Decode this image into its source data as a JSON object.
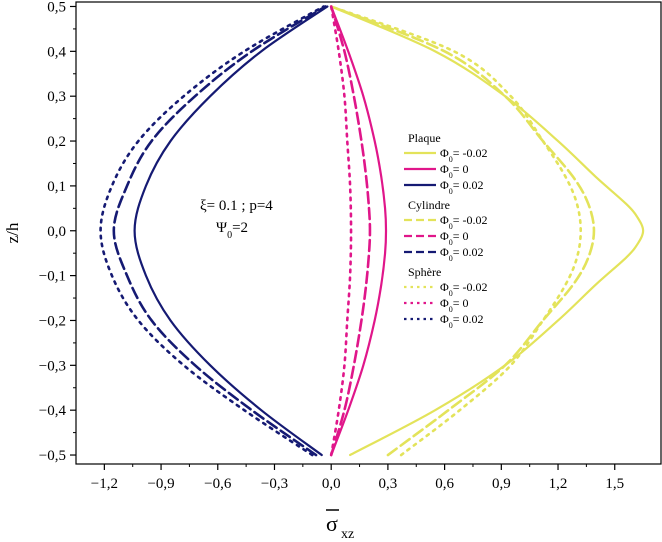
{
  "chart_data": {
    "type": "line",
    "xlabel": "σ̄xz",
    "ylabel": "z/h",
    "xlim": [
      -1.35,
      1.75
    ],
    "ylim": [
      -0.52,
      0.51
    ],
    "xticks": [
      -1.2,
      -0.9,
      -0.6,
      -0.3,
      0.0,
      0.3,
      0.6,
      0.9,
      1.2,
      1.5
    ],
    "yticks": [
      -0.5,
      -0.4,
      -0.3,
      -0.2,
      -0.1,
      0.0,
      0.1,
      0.2,
      0.3,
      0.4,
      0.5
    ],
    "xtick_labels": [
      "−1,2",
      "−0,9",
      "−0,6",
      "−0,3",
      "0,0",
      "0,3",
      "0,6",
      "0,9",
      "1,2",
      "1,5"
    ],
    "ytick_labels": [
      "−0,5",
      "−0,4",
      "−0,3",
      "−0,2",
      "−0,1",
      "0,0",
      "0,1",
      "0,2",
      "0,3",
      "0,4",
      "0,5"
    ],
    "grid": false,
    "legend_position": "right",
    "annotation": {
      "line1": "ξ= 0.1 ; p=4",
      "line2_main": "Ψ",
      "line2_sub": "0",
      "line2_rest": "=2"
    },
    "colors": {
      "yellow": "#e3e35a",
      "magenta": "#e0168a",
      "navy": "#151a73"
    },
    "legend_groups": [
      {
        "title": "Plaque",
        "style": "solid",
        "entries": [
          {
            "symbol": "Φ",
            "sub": "0",
            "text": "= -0.02",
            "color": "#e3e35a"
          },
          {
            "symbol": "Φ",
            "sub": "0",
            "text": "= 0",
            "color": "#e0168a"
          },
          {
            "symbol": "Φ",
            "sub": "0",
            "text": "= 0.02",
            "color": "#151a73"
          }
        ]
      },
      {
        "title": "Cylindre",
        "style": "dash",
        "entries": [
          {
            "symbol": "Φ",
            "sub": "0",
            "text": "= -0.02",
            "color": "#e3e35a"
          },
          {
            "symbol": "Φ",
            "sub": "0",
            "text": "= 0",
            "color": "#e0168a"
          },
          {
            "symbol": "Φ",
            "sub": "0",
            "text": "= 0.02",
            "color": "#151a73"
          }
        ]
      },
      {
        "title": "Sphère",
        "style": "dot",
        "entries": [
          {
            "symbol": "Φ",
            "sub": "0",
            "text": "= -0.02",
            "color": "#e3e35a"
          },
          {
            "symbol": "Φ",
            "sub": "0",
            "text": "= 0",
            "color": "#e0168a"
          },
          {
            "symbol": "Φ",
            "sub": "0",
            "text": "= 0.02",
            "color": "#151a73"
          }
        ]
      }
    ],
    "series": [
      {
        "group": "Plaque",
        "phi0": "-0.02",
        "style": "solid",
        "color": "#e3e35a",
        "points": [
          [
            0.1,
            -0.5
          ],
          [
            0.55,
            -0.4
          ],
          [
            0.92,
            -0.3
          ],
          [
            1.2,
            -0.2
          ],
          [
            1.4,
            -0.12
          ],
          [
            1.56,
            -0.06
          ],
          [
            1.62,
            -0.03
          ],
          [
            1.65,
            0.0
          ],
          [
            1.62,
            0.03
          ],
          [
            1.56,
            0.06
          ],
          [
            1.4,
            0.12
          ],
          [
            1.2,
            0.2
          ],
          [
            0.92,
            0.3
          ],
          [
            0.55,
            0.4
          ],
          [
            0.0,
            0.5
          ]
        ]
      },
      {
        "group": "Plaque",
        "phi0": "0",
        "style": "solid",
        "color": "#e0168a",
        "points": [
          [
            0.0,
            -0.5
          ],
          [
            0.09,
            -0.4
          ],
          [
            0.17,
            -0.3
          ],
          [
            0.23,
            -0.2
          ],
          [
            0.265,
            -0.12
          ],
          [
            0.285,
            -0.05
          ],
          [
            0.29,
            0.0
          ],
          [
            0.285,
            0.05
          ],
          [
            0.265,
            0.12
          ],
          [
            0.23,
            0.2
          ],
          [
            0.17,
            0.3
          ],
          [
            0.09,
            0.4
          ],
          [
            0.0,
            0.5
          ]
        ]
      },
      {
        "group": "Plaque",
        "phi0": "0.02",
        "style": "solid",
        "color": "#151a73",
        "points": [
          [
            -0.05,
            -0.5
          ],
          [
            -0.37,
            -0.4
          ],
          [
            -0.64,
            -0.3
          ],
          [
            -0.85,
            -0.2
          ],
          [
            -0.98,
            -0.1
          ],
          [
            -1.04,
            0.0
          ],
          [
            -0.98,
            0.1
          ],
          [
            -0.85,
            0.2
          ],
          [
            -0.64,
            0.3
          ],
          [
            -0.37,
            0.4
          ],
          [
            -0.02,
            0.5
          ]
        ]
      },
      {
        "group": "Cylindre",
        "phi0": "-0.02",
        "style": "dash",
        "color": "#e3e35a",
        "points": [
          [
            0.3,
            -0.5
          ],
          [
            0.62,
            -0.4
          ],
          [
            0.92,
            -0.3
          ],
          [
            1.12,
            -0.2
          ],
          [
            1.28,
            -0.12
          ],
          [
            1.36,
            -0.06
          ],
          [
            1.39,
            0.0
          ],
          [
            1.36,
            0.06
          ],
          [
            1.28,
            0.12
          ],
          [
            1.12,
            0.2
          ],
          [
            0.92,
            0.3
          ],
          [
            0.6,
            0.4
          ],
          [
            0.0,
            0.5
          ]
        ]
      },
      {
        "group": "Cylindre",
        "phi0": "0",
        "style": "dash",
        "color": "#e0168a",
        "points": [
          [
            0.0,
            -0.5
          ],
          [
            0.07,
            -0.4
          ],
          [
            0.12,
            -0.3
          ],
          [
            0.16,
            -0.2
          ],
          [
            0.185,
            -0.12
          ],
          [
            0.2,
            -0.05
          ],
          [
            0.205,
            0.0
          ],
          [
            0.2,
            0.05
          ],
          [
            0.185,
            0.12
          ],
          [
            0.16,
            0.2
          ],
          [
            0.12,
            0.3
          ],
          [
            0.07,
            0.4
          ],
          [
            0.0,
            0.5
          ]
        ]
      },
      {
        "group": "Cylindre",
        "phi0": "0.02",
        "style": "dash",
        "color": "#151a73",
        "points": [
          [
            -0.08,
            -0.5
          ],
          [
            -0.42,
            -0.4
          ],
          [
            -0.72,
            -0.3
          ],
          [
            -0.95,
            -0.2
          ],
          [
            -1.08,
            -0.1
          ],
          [
            -1.15,
            0.0
          ],
          [
            -1.08,
            0.1
          ],
          [
            -0.95,
            0.2
          ],
          [
            -0.72,
            0.3
          ],
          [
            -0.42,
            0.4
          ],
          [
            -0.03,
            0.5
          ]
        ]
      },
      {
        "group": "Sphère",
        "phi0": "-0.02",
        "style": "dot",
        "color": "#e3e35a",
        "points": [
          [
            0.37,
            -0.5
          ],
          [
            0.68,
            -0.4
          ],
          [
            0.95,
            -0.3
          ],
          [
            1.12,
            -0.2
          ],
          [
            1.24,
            -0.12
          ],
          [
            1.3,
            -0.06
          ],
          [
            1.32,
            0.0
          ],
          [
            1.3,
            0.06
          ],
          [
            1.24,
            0.12
          ],
          [
            1.12,
            0.2
          ],
          [
            0.95,
            0.3
          ],
          [
            0.65,
            0.4
          ],
          [
            0.0,
            0.5
          ]
        ]
      },
      {
        "group": "Sphère",
        "phi0": "0",
        "style": "dot",
        "color": "#e0168a",
        "points": [
          [
            0.0,
            -0.5
          ],
          [
            0.04,
            -0.4
          ],
          [
            0.07,
            -0.3
          ],
          [
            0.085,
            -0.2
          ],
          [
            0.1,
            -0.1
          ],
          [
            0.105,
            0.0
          ],
          [
            0.1,
            0.1
          ],
          [
            0.085,
            0.2
          ],
          [
            0.07,
            0.3
          ],
          [
            0.04,
            0.4
          ],
          [
            0.0,
            0.5
          ]
        ]
      },
      {
        "group": "Sphère",
        "phi0": "0.02",
        "style": "dot",
        "color": "#151a73",
        "points": [
          [
            -0.1,
            -0.5
          ],
          [
            -0.46,
            -0.4
          ],
          [
            -0.78,
            -0.3
          ],
          [
            -1.02,
            -0.2
          ],
          [
            -1.16,
            -0.1
          ],
          [
            -1.22,
            0.0
          ],
          [
            -1.16,
            0.1
          ],
          [
            -1.02,
            0.2
          ],
          [
            -0.78,
            0.3
          ],
          [
            -0.46,
            0.4
          ],
          [
            -0.04,
            0.5
          ]
        ]
      }
    ]
  }
}
